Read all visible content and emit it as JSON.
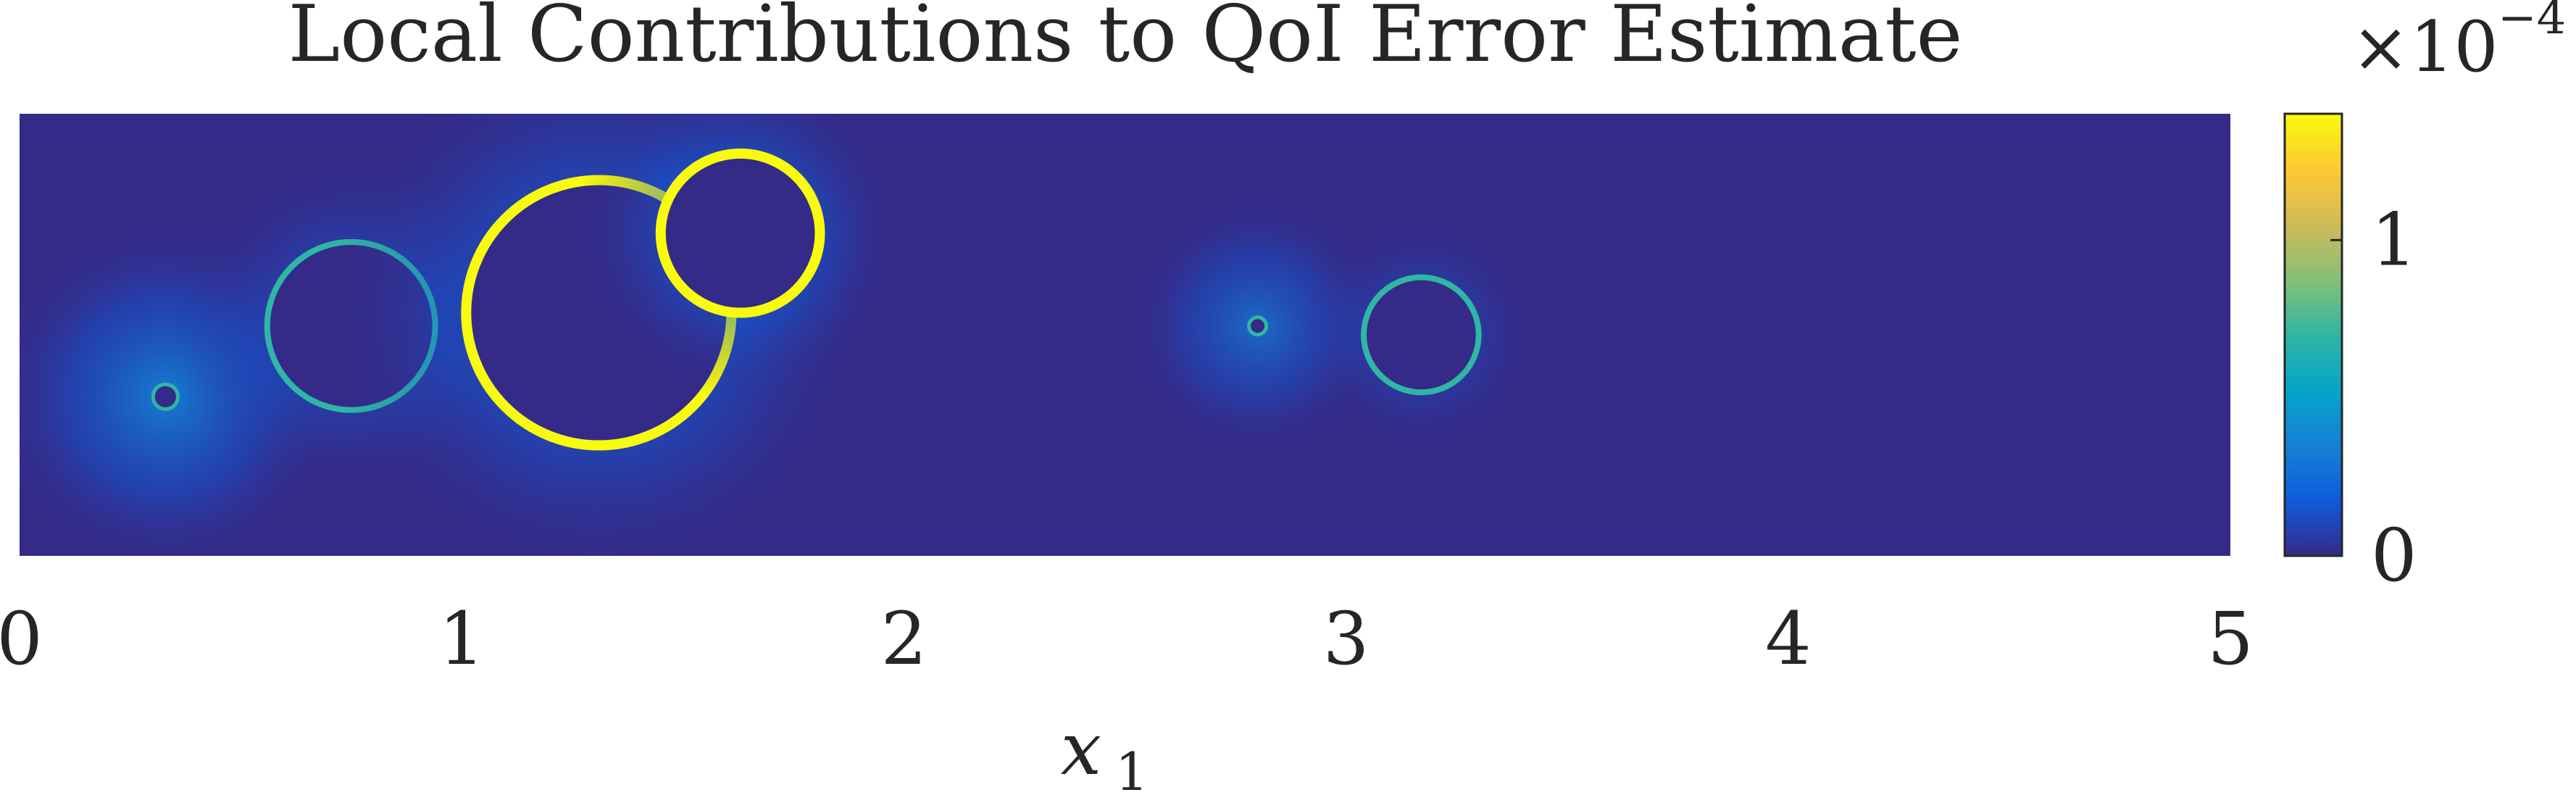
{
  "chart_data": {
    "type": "heatmap",
    "title": "Local Contributions to QoI Error Estimate",
    "xlabel": "x",
    "xlabel_subscript": "1",
    "ylabel": "",
    "xlim": [
      0,
      5
    ],
    "xticks": [
      0,
      1,
      2,
      3,
      4,
      5
    ],
    "xtick_labels": [
      "0",
      "1",
      "2",
      "3",
      "4",
      "5"
    ],
    "grid": false,
    "colormap": "parula",
    "colormap_stops": [
      "#352a87",
      "#0f5cdd",
      "#1481d6",
      "#06a4ca",
      "#2eb7a4",
      "#87bf77",
      "#d1bb59",
      "#fec832",
      "#f9fb0e"
    ],
    "colorbar": {
      "range": [
        0,
        1.4
      ],
      "ticks": [
        0,
        1
      ],
      "tick_labels": [
        "0",
        "1"
      ],
      "exponent_prefix": "×10",
      "exponent": "−4",
      "placement": "right"
    },
    "features": [
      {
        "kind": "point",
        "x": 0.33,
        "y": 0.36,
        "ring": 0.08,
        "glow": 0.95
      },
      {
        "kind": "ring",
        "x": 0.75,
        "y": 0.52,
        "r": 0.19,
        "intensity": 0.5,
        "glow": 0.55
      },
      {
        "kind": "ring",
        "x": 1.31,
        "y": 0.55,
        "r": 0.3,
        "intensity": 1.0,
        "glow": 0.85
      },
      {
        "kind": "ring",
        "x": 1.63,
        "y": 0.73,
        "r": 0.18,
        "intensity": 1.0,
        "glow": 0.8
      },
      {
        "kind": "point",
        "x": 2.8,
        "y": 0.52,
        "ring": 0.04,
        "glow": 0.75
      },
      {
        "kind": "ring",
        "x": 3.17,
        "y": 0.5,
        "r": 0.13,
        "intensity": 0.5,
        "glow": 0.45
      }
    ],
    "background_value": 0.0
  }
}
